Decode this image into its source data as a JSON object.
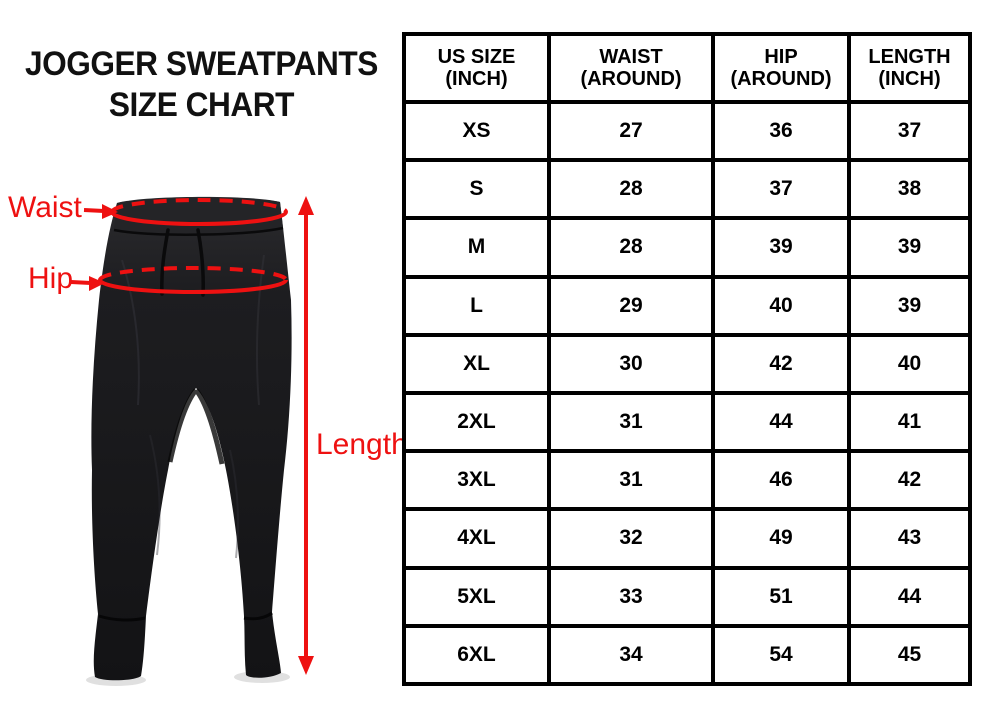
{
  "title": {
    "line1": "JOGGER SWEATPANTS",
    "line2": "SIZE CHART"
  },
  "diagram": {
    "labels": {
      "waist": "Waist",
      "hip": "Hip",
      "length": "Length"
    },
    "annotation_color": "#ee1111",
    "pants_color": "#1a1a1c"
  },
  "chart_data": {
    "type": "table",
    "title": "JOGGER SWEATPANTS SIZE CHART",
    "columns": [
      "US SIZE (INCH)",
      "WAIST (AROUND)",
      "HIP (AROUND)",
      "LENGTH (INCH)"
    ],
    "rows": [
      [
        "XS",
        "27",
        "36",
        "37"
      ],
      [
        "S",
        "28",
        "37",
        "38"
      ],
      [
        "M",
        "28",
        "39",
        "39"
      ],
      [
        "L",
        "29",
        "40",
        "39"
      ],
      [
        "XL",
        "30",
        "42",
        "40"
      ],
      [
        "2XL",
        "31",
        "44",
        "41"
      ],
      [
        "3XL",
        "31",
        "46",
        "42"
      ],
      [
        "4XL",
        "32",
        "49",
        "43"
      ],
      [
        "5XL",
        "33",
        "51",
        "44"
      ],
      [
        "6XL",
        "34",
        "54",
        "45"
      ]
    ]
  },
  "size_table": {
    "headers": [
      {
        "line1": "US SIZE",
        "line2": "(INCH)"
      },
      {
        "line1": "WAIST",
        "line2": "(AROUND)"
      },
      {
        "line1": "HIP",
        "line2": "(AROUND)"
      },
      {
        "line1": "LENGTH",
        "line2": "(INCH)"
      }
    ]
  }
}
